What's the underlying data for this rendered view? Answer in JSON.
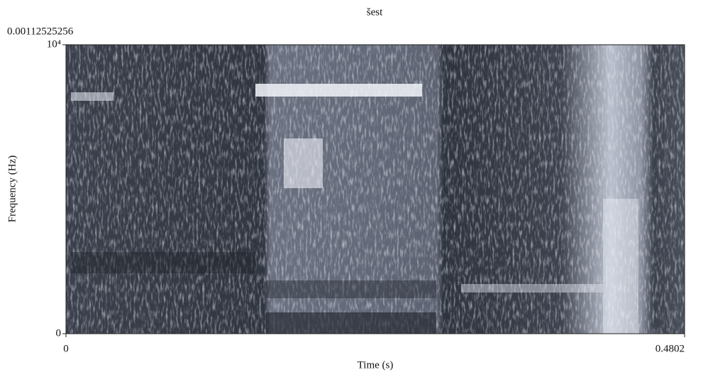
{
  "chart_data": {
    "type": "spectrogram",
    "title": "šest",
    "annotation": "0.00112525256",
    "xlabel": "Time (s)",
    "ylabel": "Frequency (Hz)",
    "xlim": [
      0,
      0.4802
    ],
    "xticks": [
      0,
      0.4802
    ],
    "ylim": [
      0,
      10000
    ],
    "yticks": [
      0,
      {
        "value": 10000,
        "label": "10⁴"
      }
    ]
  }
}
